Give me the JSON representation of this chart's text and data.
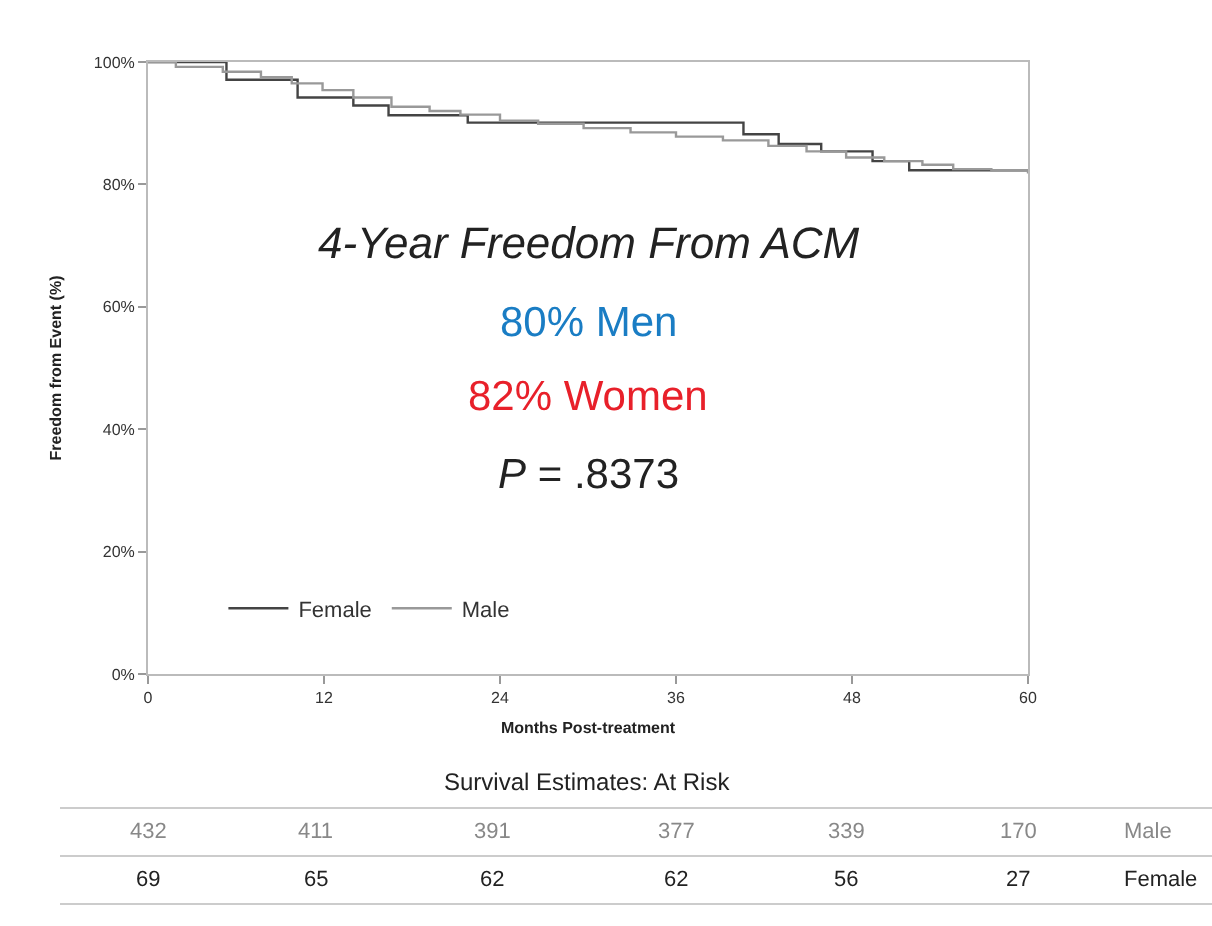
{
  "chart_data": {
    "type": "step",
    "ylabel": "Freedom from Event (%)",
    "xlabel": "Months Post-treatment",
    "xlim": [
      0,
      60
    ],
    "xticks": [
      0,
      12,
      24,
      36,
      48,
      60
    ],
    "ylim": [
      0,
      100
    ],
    "yticks": [
      {
        "value": 0,
        "label": "0%"
      },
      {
        "value": 20,
        "label": "20%"
      },
      {
        "value": 40,
        "label": "40%"
      },
      {
        "value": 60,
        "label": "60%"
      },
      {
        "value": 80,
        "label": "80%"
      },
      {
        "value": 100,
        "label": "100%"
      }
    ],
    "series": [
      {
        "name": "Female",
        "color": "#444444",
        "x": [
          0,
          5.35,
          10.2,
          14.0,
          16.4,
          21.8,
          40.6,
          43.0,
          45.9,
          49.4,
          51.9,
          60
        ],
        "values": [
          100,
          97.1,
          94.2,
          92.9,
          91.3,
          90.1,
          88.2,
          86.6,
          85.4,
          83.8,
          82.3,
          82.3
        ]
      },
      {
        "name": "Male",
        "color": "#999999",
        "x": [
          0,
          1.9,
          5.1,
          7.7,
          9.8,
          11.9,
          14.0,
          16.6,
          19.2,
          21.3,
          24.0,
          26.6,
          29.7,
          32.9,
          36.0,
          39.2,
          42.3,
          44.9,
          47.6,
          50.2,
          52.8,
          54.9,
          57.5,
          60
        ],
        "values": [
          100,
          99.2,
          98.4,
          97.5,
          96.5,
          95.4,
          94.2,
          92.7,
          92.0,
          91.4,
          90.4,
          89.9,
          89.2,
          88.5,
          87.8,
          87.2,
          86.3,
          85.4,
          84.4,
          83.8,
          83.2,
          82.5,
          82.3,
          81.8
        ]
      }
    ],
    "legend": "bottom left",
    "line_style": "solid",
    "marker": "none",
    "annotations": [
      "4-Year Freedom From ACM",
      "80% Men",
      "82% Women",
      "P = .8373",
      "Survival Estimates: At Risk",
      "432",
      "411",
      "391",
      "377",
      "339",
      "170",
      "Male",
      "69",
      "65",
      "62",
      "62",
      "56",
      "27",
      "Female"
    ]
  }
}
